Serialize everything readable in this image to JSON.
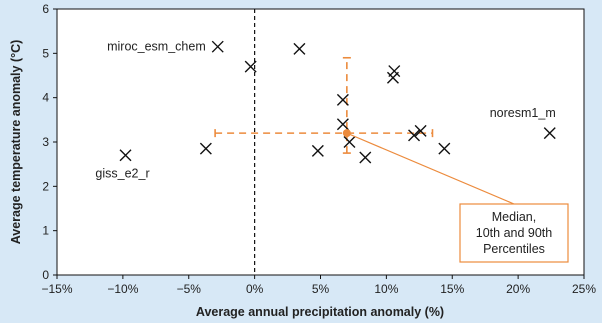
{
  "chart_data": {
    "type": "scatter",
    "xlabel": "Average annual precipitation anomaly (%)",
    "ylabel": "Average temperature anomaly (°C)",
    "xlim": [
      -15,
      25
    ],
    "ylim": [
      0,
      6
    ],
    "x_ticks": [
      -15,
      -10,
      -5,
      0,
      5,
      10,
      15,
      20,
      25
    ],
    "x_tick_labels": [
      "−15%",
      "−10%",
      "−5%",
      "0%",
      "5%",
      "10%",
      "15%",
      "20%",
      "25%"
    ],
    "y_ticks": [
      0,
      1,
      2,
      3,
      4,
      5,
      6
    ],
    "y_tick_labels": [
      "0",
      "1",
      "2",
      "3",
      "4",
      "5",
      "6"
    ],
    "zero_reference_line_x": 0,
    "points": [
      {
        "x": -9.8,
        "y": 2.7,
        "label": "giss_e2_r"
      },
      {
        "x": -3.7,
        "y": 2.85
      },
      {
        "x": -2.8,
        "y": 5.15,
        "label": "miroc_esm_chem"
      },
      {
        "x": -0.3,
        "y": 4.7
      },
      {
        "x": 3.4,
        "y": 5.1
      },
      {
        "x": 4.8,
        "y": 2.8
      },
      {
        "x": 6.7,
        "y": 3.95
      },
      {
        "x": 6.7,
        "y": 3.4
      },
      {
        "x": 7.2,
        "y": 3.0
      },
      {
        "x": 8.4,
        "y": 2.65
      },
      {
        "x": 10.6,
        "y": 4.6
      },
      {
        "x": 10.5,
        "y": 4.45
      },
      {
        "x": 12.1,
        "y": 3.15
      },
      {
        "x": 12.6,
        "y": 3.25
      },
      {
        "x": 14.4,
        "y": 2.85
      },
      {
        "x": 22.4,
        "y": 3.2,
        "label": "noresm1_m"
      }
    ],
    "median": {
      "x": 7.0,
      "y": 3.2
    },
    "percentile_10_90": {
      "x": [
        -3.0,
        13.5
      ],
      "y": [
        2.75,
        4.9
      ]
    },
    "callout_lines": [
      "Median,",
      "10th and 90th",
      "Percentiles"
    ],
    "colors": {
      "background": "#d7e8f6",
      "plot_area": "#ffffff",
      "marker": "#111111",
      "median": "#ec8b3d",
      "callout_border": "#ec8b3d"
    }
  }
}
